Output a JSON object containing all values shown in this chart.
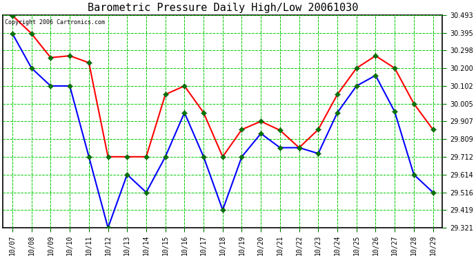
{
  "title": "Barometric Pressure Daily High/Low 20061030",
  "copyright": "Copyright 2006 Cartronics.com",
  "dates": [
    "10/07",
    "10/08",
    "10/09",
    "10/10",
    "10/11",
    "10/12",
    "10/13",
    "10/14",
    "10/15",
    "10/16",
    "10/17",
    "10/18",
    "10/19",
    "10/20",
    "10/21",
    "10/22",
    "10/23",
    "10/24",
    "10/25",
    "10/26",
    "10/27",
    "10/28",
    "10/29"
  ],
  "high_values": [
    30.49,
    30.39,
    30.258,
    30.268,
    30.23,
    29.712,
    29.712,
    29.712,
    30.055,
    30.102,
    29.955,
    29.712,
    29.862,
    29.907,
    29.858,
    29.762,
    29.862,
    30.055,
    30.2,
    30.268,
    30.2,
    30.005,
    29.862
  ],
  "low_values": [
    30.39,
    30.2,
    30.102,
    30.102,
    29.712,
    29.321,
    29.614,
    29.516,
    29.712,
    29.955,
    29.712,
    29.419,
    29.712,
    29.84,
    29.762,
    29.762,
    29.73,
    29.955,
    30.102,
    30.16,
    29.96,
    29.614,
    29.516
  ],
  "ylim_min": 29.321,
  "ylim_max": 30.493,
  "yticks": [
    30.493,
    30.395,
    30.298,
    30.2,
    30.102,
    30.005,
    29.907,
    29.809,
    29.712,
    29.614,
    29.516,
    29.419,
    29.321
  ],
  "bg_color": "#ffffff",
  "grid_color": "#00cc00",
  "high_color": "#ff0000",
  "low_color": "#0000ff",
  "marker_color": "#007700",
  "title_color": "#000000",
  "title_fontsize": 11,
  "tick_fontsize": 7,
  "copyright_fontsize": 6
}
